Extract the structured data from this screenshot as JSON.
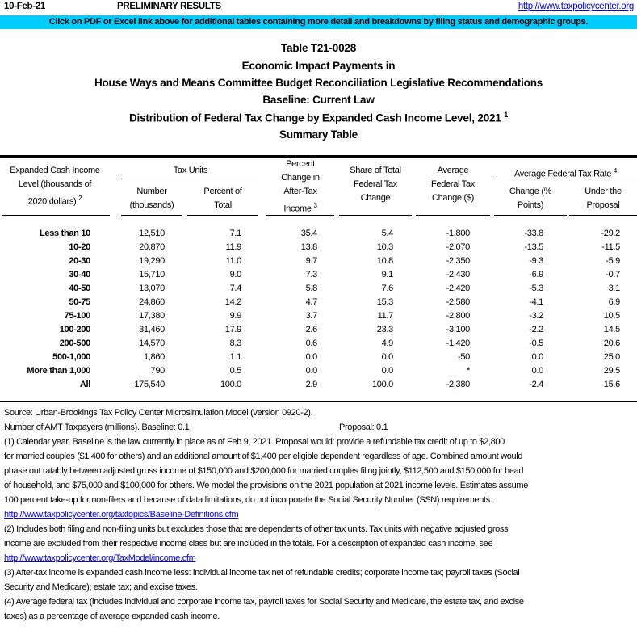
{
  "header": {
    "date": "10-Feb-21",
    "status": "PRELIMINARY RESULTS",
    "link": "http://www.taxpolicycenter.org",
    "banner": "Click on PDF or Excel link above for additional tables containing more detail and breakdowns by filing status and demographic groups.",
    "banner_color": "#00ccff"
  },
  "titles": {
    "table_id": "Table T21-0028",
    "line1": "Economic Impact Payments in",
    "line2": "House Ways and Means Committee Budget Reconciliation Legislative Recommendations",
    "line3": "Baseline: Current Law",
    "line4": "Distribution of Federal Tax Change by Expanded Cash Income Level, 2021",
    "line4_sup": "1",
    "line5": "Summary Table"
  },
  "columns": {
    "income_level": [
      "Expanded Cash Income",
      "Level (thousands of",
      "2020 dollars)"
    ],
    "income_level_sup": "2",
    "tax_units": "Tax Units",
    "number": [
      "Number",
      "(thousands)"
    ],
    "percent_total": [
      "Percent of",
      "Total"
    ],
    "pct_change": [
      "Percent",
      "Change in",
      "After-Tax",
      "Income"
    ],
    "pct_change_sup": "3",
    "share": [
      "Share of Total",
      "Federal Tax",
      "Change"
    ],
    "avg_change": [
      "Average",
      "Federal Tax",
      "Change ($)"
    ],
    "avg_rate": "Average Federal Tax Rate",
    "avg_rate_sup": "4",
    "rate_change": [
      "Change (%",
      "Points)"
    ],
    "rate_under": [
      "Under the",
      "Proposal"
    ]
  },
  "rows": [
    [
      "Less than 10",
      "12,510",
      "7.1",
      "35.4",
      "5.4",
      "-1,800",
      "-33.8",
      "-29.2"
    ],
    [
      "10-20",
      "20,870",
      "11.9",
      "13.8",
      "10.3",
      "-2,070",
      "-13.5",
      "-11.5"
    ],
    [
      "20-30",
      "19,290",
      "11.0",
      "9.7",
      "10.8",
      "-2,350",
      "-9.3",
      "-5.9"
    ],
    [
      "30-40",
      "15,710",
      "9.0",
      "7.3",
      "9.1",
      "-2,430",
      "-6.9",
      "-0.7"
    ],
    [
      "40-50",
      "13,070",
      "7.4",
      "5.8",
      "7.6",
      "-2,420",
      "-5.3",
      "3.1"
    ],
    [
      "50-75",
      "24,860",
      "14.2",
      "4.7",
      "15.3",
      "-2,580",
      "-4.1",
      "6.9"
    ],
    [
      "75-100",
      "17,380",
      "9.9",
      "3.7",
      "11.7",
      "-2,800",
      "-3.2",
      "10.5"
    ],
    [
      "100-200",
      "31,460",
      "17.9",
      "2.6",
      "23.3",
      "-3,100",
      "-2.2",
      "14.5"
    ],
    [
      "200-500",
      "14,570",
      "8.3",
      "0.6",
      "4.9",
      "-1,420",
      "-0.5",
      "20.6"
    ],
    [
      "500-1,000",
      "1,860",
      "1.1",
      "0.0",
      "0.0",
      "-50",
      "0.0",
      "25.0"
    ],
    [
      "More than 1,000",
      "790",
      "0.5",
      "0.0",
      "0.0",
      "*",
      "0.0",
      "29.5"
    ],
    [
      "All",
      "175,540",
      "100.0",
      "2.9",
      "100.0",
      "-2,380",
      "-2.4",
      "15.6"
    ]
  ],
  "footnotes": {
    "source": "Source: Urban-Brookings Tax Policy Center Microsimulation Model (version 0920-2).",
    "amt_label": "Number of AMT Taxpayers (millions).  Baseline: 0.1",
    "amt_proposal": "Proposal: 0.1",
    "n1": [
      "(1) Calendar year. Baseline is the law currently in place as of Feb 9, 2021. Proposal would: provide a refundable tax credit of up to $2,800",
      "for married couples ($1,400 for others) and an additional amount of $1,400 per eligible dependent regardless of age. Combined amount would",
      "phase out ratably between adjusted gross income of $150,000 and $200,000 for married couples filing jointly, $112,500 and $150,000 for head",
      "of household, and $75,000 and $100,000 for others. We model the provisions on the 2021 population at 2021 income levels. Estimates assume",
      "100 percent take-up for non-filers and because of data limitations, do not incorporate the Social Security Number (SSN) requirements."
    ],
    "n1_link": "http://www.taxpolicycenter.org/taxtopics/Baseline-Definitions.cfm",
    "n2": [
      "(2) Includes both filing and non-filing units but excludes those that are dependents of other tax units. Tax units with negative adjusted gross",
      "income are excluded from their respective income class but are included in the totals. For a description of expanded cash income, see"
    ],
    "n2_link": "http://www.taxpolicycenter.org/TaxModel/income.cfm",
    "n3": [
      "(3) After-tax income is expanded cash income less: individual income tax net of refundable credits; corporate income tax; payroll taxes (Social",
      "Security and Medicare); estate tax; and excise taxes."
    ],
    "n4": [
      "(4) Average federal tax (includes individual and corporate income tax, payroll taxes for Social Security and Medicare, the estate tax, and excise",
      "taxes) as a percentage of average expanded cash income."
    ]
  }
}
